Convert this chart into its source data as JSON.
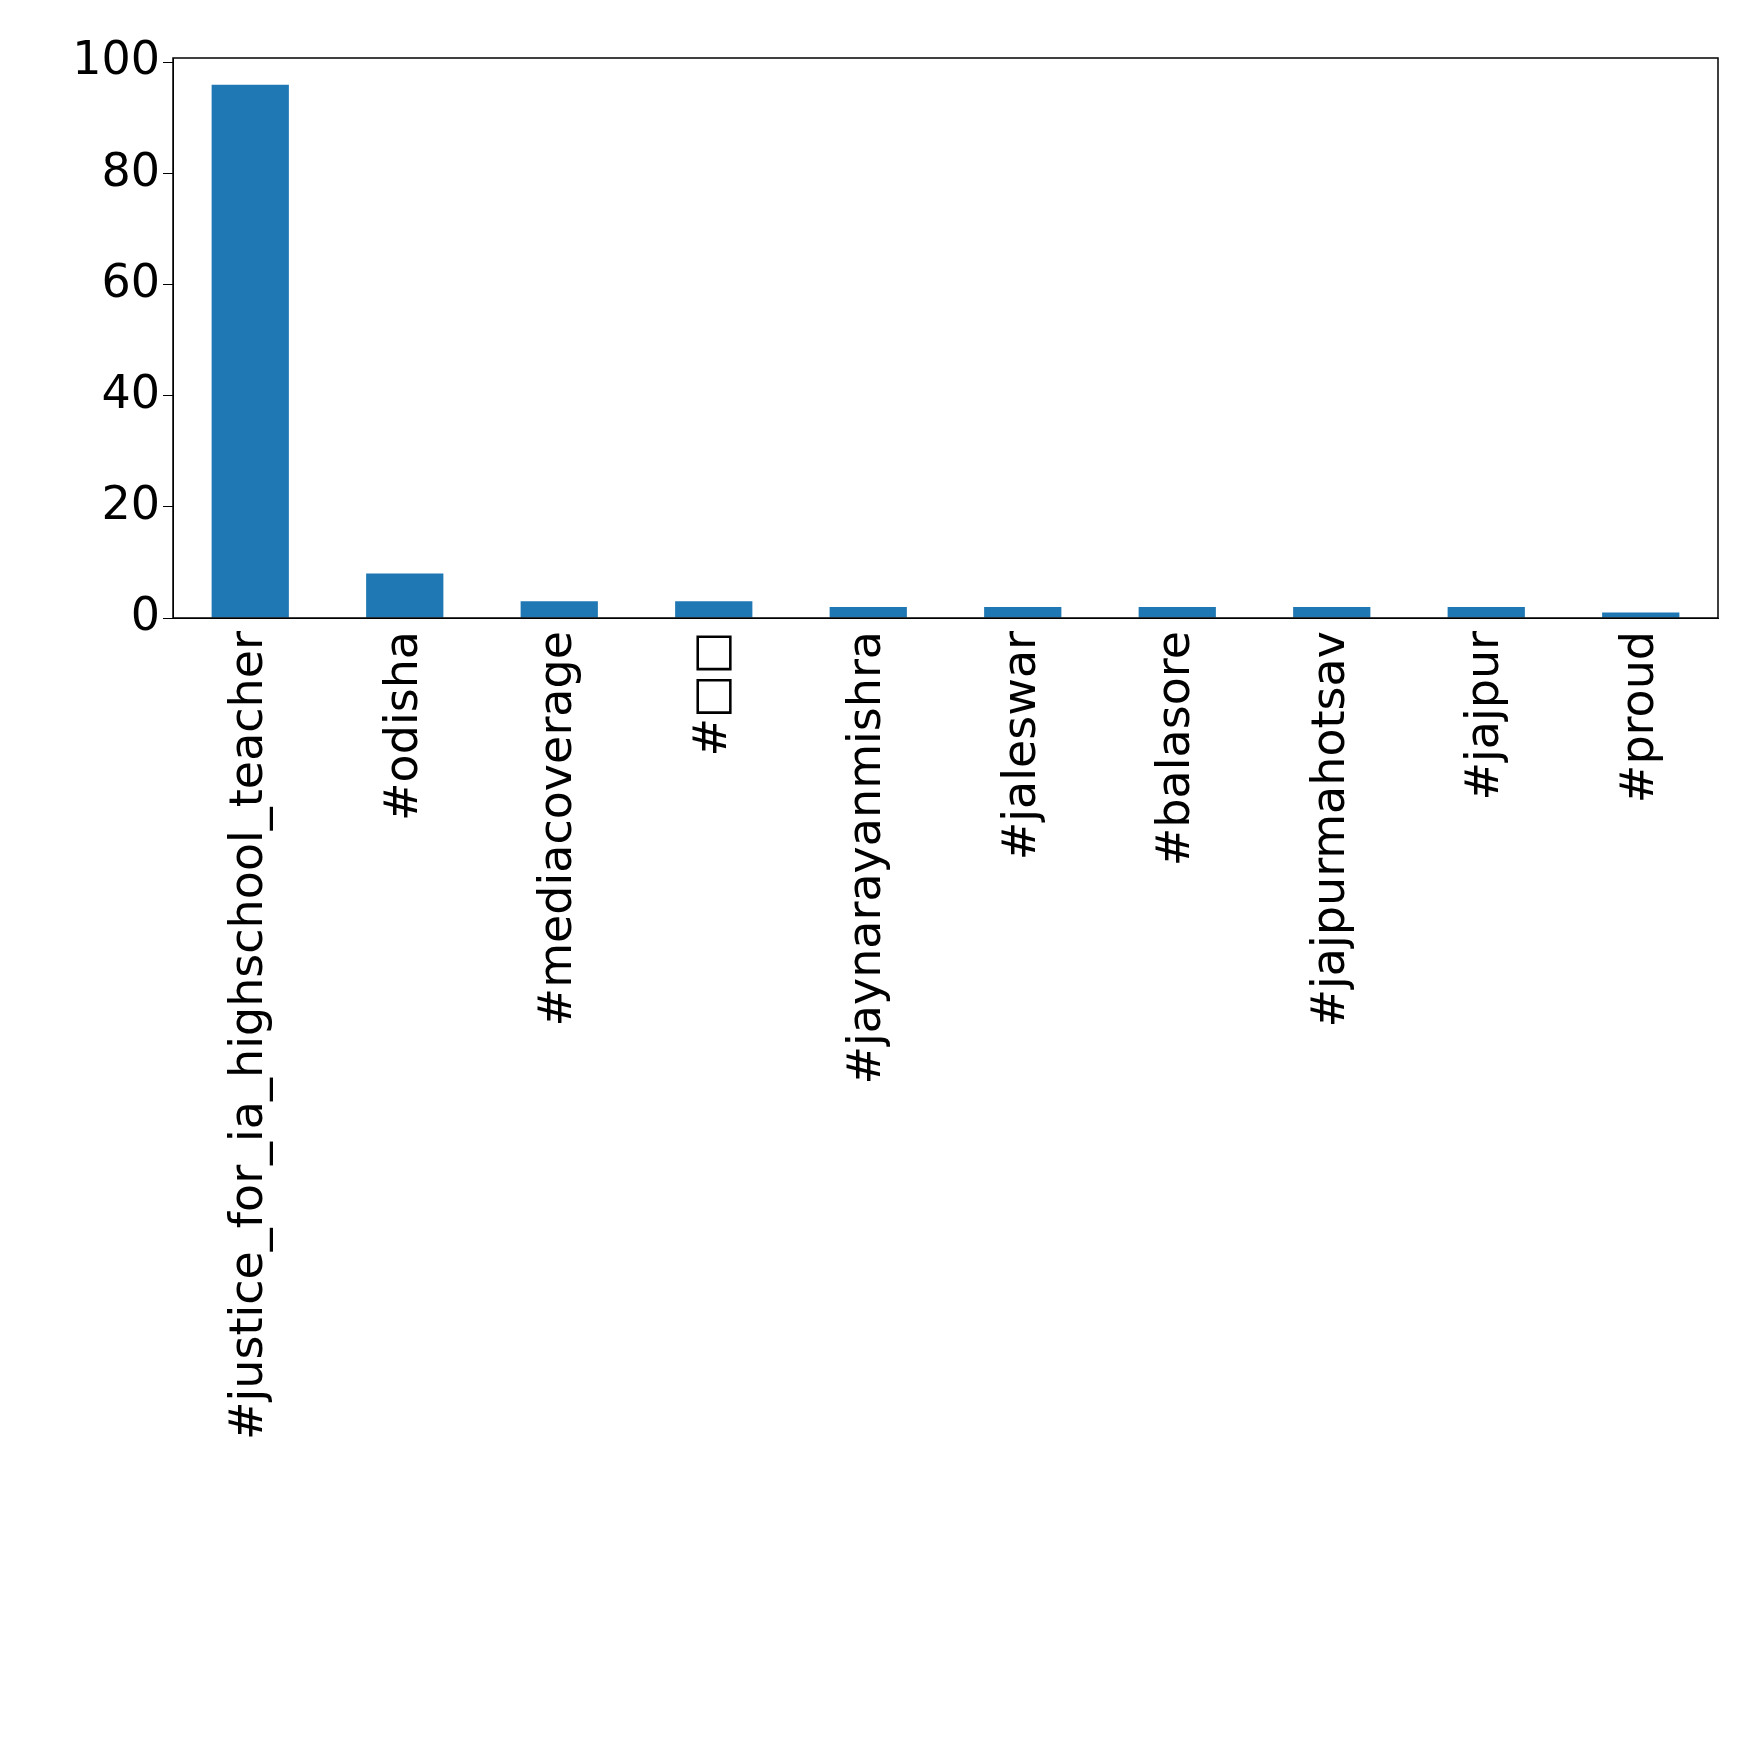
{
  "chart_data": {
    "type": "bar",
    "categories": [
      "#justice_for_ia_highschool_teacher",
      "#odisha",
      "#mediacoverage",
      "#□□",
      "#jaynarayanmishra",
      "#jaleswar",
      "#balasore",
      "#jajpurmahotsav",
      "#jajpur",
      "#proud"
    ],
    "values": [
      96,
      8,
      3,
      3,
      2,
      2,
      2,
      2,
      2,
      1
    ],
    "color": "#1f77b4",
    "ylim": [
      0,
      100.8
    ],
    "yticks": [
      0,
      20,
      40,
      60,
      80,
      100
    ],
    "grid": false,
    "legend": false
  }
}
